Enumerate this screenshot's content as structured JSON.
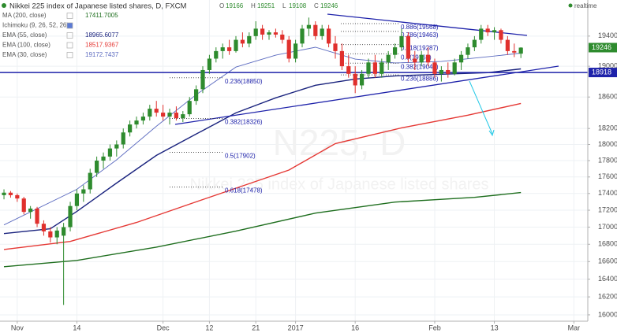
{
  "chart_data": {
    "type": "candlestick",
    "title": "Nikkei 225 index of Japanese listed shares, D, FXCM",
    "watermark": [
      "N225, D",
      "Nikkei 225 index of Japanese listed shares"
    ],
    "status": "realtime",
    "ohlc_labels": [
      "O",
      "H",
      "L",
      "C"
    ],
    "up_color": "#2e8b2e",
    "down_color": "#e0302d",
    "x": [
      0,
      1,
      2,
      3,
      4,
      5,
      6,
      7,
      8,
      9,
      10,
      11,
      12,
      13,
      14,
      15,
      16,
      17,
      18,
      19,
      20,
      21,
      22,
      23,
      24,
      25,
      26,
      27,
      28,
      29,
      30,
      31,
      32,
      33,
      34,
      35,
      36,
      37,
      38,
      39,
      40,
      41,
      42,
      43,
      44,
      45,
      46,
      47,
      48,
      49,
      50,
      51,
      52,
      53,
      54,
      55,
      56,
      57,
      58,
      59,
      60,
      61,
      62,
      63,
      64,
      65,
      66,
      67,
      68,
      69,
      70,
      71,
      72,
      73,
      74,
      75,
      76,
      77,
      78
    ],
    "open": [
      17380,
      17410,
      17380,
      17340,
      17180,
      17220,
      17040,
      16950,
      16880,
      16900,
      17000,
      17250,
      17400,
      17450,
      17650,
      17800,
      17850,
      17950,
      18000,
      18150,
      18250,
      18300,
      18350,
      18450,
      18400,
      18350,
      18400,
      18330,
      18380,
      18550,
      18700,
      18950,
      19100,
      19200,
      19250,
      19200,
      19350,
      19300,
      19400,
      19500,
      19420,
      19450,
      19420,
      19350,
      19100,
      19300,
      19500,
      19550,
      19400,
      19500,
      19300,
      19200,
      19000,
      18900,
      18750,
      18900,
      19050,
      18900,
      19050,
      19150,
      19250,
      19400,
      19100,
      19050,
      19150,
      19050,
      18900,
      18950,
      18900,
      19050,
      19150,
      19250,
      19350,
      19500,
      19450,
      19480,
      19350,
      19200,
      19166
    ],
    "high": [
      17450,
      17430,
      17400,
      17360,
      17250,
      17240,
      17080,
      17000,
      17000,
      17050,
      17300,
      17450,
      17500,
      17700,
      17850,
      17900,
      18000,
      18050,
      18200,
      18300,
      18350,
      18400,
      18500,
      18550,
      18500,
      18450,
      18480,
      18420,
      18600,
      18750,
      19000,
      19150,
      19250,
      19300,
      19350,
      19400,
      19450,
      19450,
      19600,
      19550,
      19480,
      19500,
      19480,
      19400,
      19350,
      19550,
      19650,
      19600,
      19550,
      19550,
      19400,
      19300,
      19150,
      19000,
      18950,
      19100,
      19150,
      19100,
      19200,
      19300,
      19500,
      19450,
      19200,
      19200,
      19250,
      19100,
      19000,
      19050,
      19100,
      19200,
      19300,
      19400,
      19550,
      19550,
      19520,
      19500,
      19400,
      19300,
      19251
    ],
    "low": [
      17330,
      17350,
      17300,
      17150,
      17100,
      17000,
      16900,
      16820,
      16800,
      16110,
      16950,
      17200,
      17300,
      17400,
      17600,
      17700,
      17800,
      17850,
      17950,
      18100,
      18200,
      18250,
      18300,
      18350,
      18300,
      18250,
      18300,
      18280,
      18350,
      18500,
      18650,
      18900,
      19050,
      19100,
      19150,
      19180,
      19250,
      19250,
      19350,
      19350,
      19350,
      19380,
      19300,
      19050,
      19050,
      19250,
      19400,
      19350,
      19350,
      19250,
      19100,
      18950,
      18850,
      18650,
      18700,
      18850,
      18850,
      18850,
      18950,
      19100,
      19200,
      19050,
      18950,
      19000,
      19000,
      18850,
      18800,
      18850,
      18880,
      18950,
      19100,
      19200,
      19300,
      19400,
      19350,
      19300,
      19150,
      19120,
      19108
    ],
    "close": [
      17410,
      17380,
      17340,
      17180,
      17220,
      17040,
      16950,
      16880,
      16960,
      17000,
      17250,
      17400,
      17450,
      17650,
      17800,
      17850,
      17950,
      18000,
      18150,
      18250,
      18300,
      18350,
      18450,
      18400,
      18350,
      18400,
      18330,
      18380,
      18550,
      18700,
      18950,
      19100,
      19200,
      19250,
      19200,
      19350,
      19300,
      19400,
      19500,
      19420,
      19450,
      19420,
      19350,
      19100,
      19300,
      19500,
      19550,
      19400,
      19500,
      19300,
      19200,
      19000,
      18900,
      18750,
      18900,
      19050,
      18900,
      19050,
      19150,
      19250,
      19400,
      19100,
      19050,
      19150,
      19050,
      18900,
      18950,
      18900,
      19050,
      19150,
      19250,
      19350,
      19500,
      19450,
      19480,
      19350,
      19200,
      19180,
      19246
    ],
    "indicators": [
      {
        "name": "MA (200, close)",
        "color": "#1e6e1e",
        "x": [
          0,
          11,
          23,
          35,
          47,
          59,
          71,
          78
        ],
        "values": [
          16541,
          16613,
          16767,
          16953,
          17166,
          17297,
          17354,
          17411.7005
        ]
      },
      {
        "name": "Ichimoku (9, 26, 52, 26)"
      },
      {
        "name": "EMA (55, close)",
        "color": "#1a237e",
        "x": [
          0,
          7,
          11,
          17,
          23,
          29,
          35,
          41,
          47,
          53,
          59,
          66,
          73,
          78
        ],
        "values": [
          16925,
          16981,
          17185,
          17526,
          17864,
          18130,
          18397,
          18589,
          18752,
          18833,
          18874,
          18895,
          18916,
          18965.6077
        ]
      },
      {
        "name": "EMA (100, close)",
        "color": "#e53935",
        "x": [
          0,
          10,
          20,
          30,
          43,
          50,
          60,
          70,
          78
        ],
        "values": [
          16740,
          16833,
          17055,
          17327,
          17684,
          18011,
          18208,
          18368,
          18517.9367
        ]
      },
      {
        "name": "EMA (30, close)",
        "color": "#5c6bc0",
        "x": [
          0,
          11,
          17,
          23,
          29,
          35,
          41,
          47,
          53,
          59,
          66,
          73,
          78
        ],
        "values": [
          17026,
          17450,
          17810,
          18228,
          18630,
          18989,
          19146,
          19251,
          19094,
          19043,
          19062,
          19125,
          19172.7437
        ]
      }
    ],
    "price_line": 18918,
    "price_line_color": "#1e22aa",
    "fib_left": [
      {
        "value": 18850,
        "label": "0.236(18850)"
      },
      {
        "value": 18326,
        "label": "0.382(18326)"
      },
      {
        "value": 17902,
        "label": "0.5(17902)"
      },
      {
        "value": 17478,
        "label": "0.618(17478)"
      }
    ],
    "fib_right": [
      {
        "value": 19568,
        "label": "0.886(19568)"
      },
      {
        "value": 19463,
        "label": "0.786(19463)"
      },
      {
        "value": 19287,
        "label": "0.618(19287)"
      },
      {
        "value": 19163,
        "label": "0.5(19163)"
      },
      {
        "value": 19040,
        "label": "0.382(19040)"
      },
      {
        "value": 18886,
        "label": "0.236(18886)"
      }
    ],
    "log_scale": true,
    "grid": true,
    "ylim": [
      15930,
      19890
    ],
    "yticks": [
      16000,
      16200,
      16400,
      16600,
      16800,
      17000,
      17200,
      17400,
      17600,
      17800,
      18000,
      18200,
      18600,
      19000,
      19400
    ],
    "xlim": [
      -0.6,
      88.1
    ],
    "xticks": [
      {
        "value": 2,
        "label": "Nov"
      },
      {
        "value": 11,
        "label": "14"
      },
      {
        "value": 24,
        "label": "Dec"
      },
      {
        "value": 31,
        "label": "12"
      },
      {
        "value": 38,
        "label": "21"
      },
      {
        "value": 44,
        "label": "2017"
      },
      {
        "value": 53,
        "label": "16"
      },
      {
        "value": 65,
        "label": "Feb"
      },
      {
        "value": 74,
        "label": "13"
      },
      {
        "value": 86,
        "label": "Mar"
      }
    ]
  }
}
